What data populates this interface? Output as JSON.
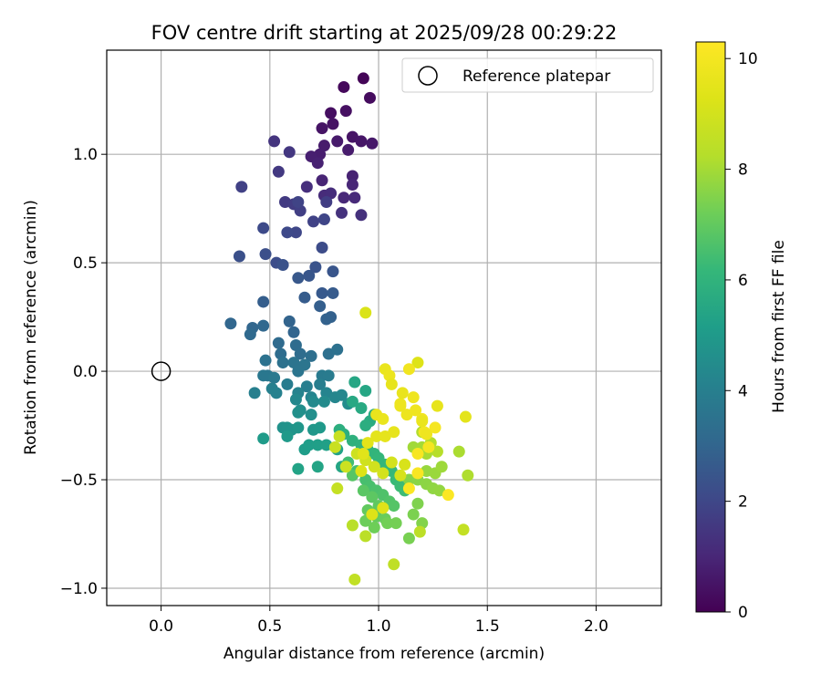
{
  "chart_data": {
    "type": "scatter",
    "title": "FOV centre drift starting at 2025/09/28 00:29:22",
    "xlabel": "Angular distance from reference (arcmin)",
    "ylabel": "Rotation from reference (arcmin)",
    "xlim": [
      -0.25,
      2.3
    ],
    "ylim": [
      -1.08,
      1.48
    ],
    "xticks": [
      0.0,
      0.5,
      1.0,
      1.5,
      2.0
    ],
    "xtick_labels": [
      "0.0",
      "0.5",
      "1.0",
      "1.5",
      "2.0"
    ],
    "yticks": [
      -1.0,
      -0.5,
      0.0,
      0.5,
      1.0
    ],
    "ytick_labels": [
      "−1.0",
      "−0.5",
      "0.0",
      "0.5",
      "1.0"
    ],
    "grid": true,
    "legend": {
      "position": "top-right",
      "entries": [
        "Reference platepar"
      ]
    },
    "reference_point": {
      "x": 0.0,
      "y": 0.0,
      "label": "Reference platepar"
    },
    "colorbar": {
      "label": "Hours from first FF file",
      "range": [
        0,
        10.3
      ],
      "ticks": [
        0,
        2,
        4,
        6,
        8,
        10
      ],
      "tick_labels": [
        "0",
        "2",
        "4",
        "6",
        "8",
        "10"
      ],
      "colormap": "viridis"
    },
    "points": [
      [
        0.93,
        1.35,
        0.1
      ],
      [
        0.84,
        1.31,
        0.2
      ],
      [
        0.96,
        1.26,
        0.3
      ],
      [
        0.78,
        1.19,
        0.35
      ],
      [
        0.85,
        1.2,
        0.4
      ],
      [
        0.79,
        1.14,
        0.45
      ],
      [
        0.74,
        1.12,
        0.5
      ],
      [
        0.88,
        1.08,
        0.5
      ],
      [
        0.92,
        1.06,
        0.55
      ],
      [
        0.97,
        1.05,
        0.6
      ],
      [
        0.81,
        1.06,
        0.65
      ],
      [
        0.75,
        1.04,
        0.7
      ],
      [
        0.86,
        1.02,
        0.7
      ],
      [
        0.73,
        1.0,
        0.75
      ],
      [
        0.69,
        0.99,
        0.8
      ],
      [
        0.72,
        0.96,
        0.85
      ],
      [
        0.88,
        0.9,
        0.9
      ],
      [
        0.74,
        0.88,
        0.95
      ],
      [
        0.88,
        0.86,
        1.0
      ],
      [
        0.84,
        0.8,
        1.05
      ],
      [
        0.89,
        0.8,
        1.1
      ],
      [
        0.75,
        0.81,
        1.15
      ],
      [
        0.78,
        0.82,
        1.2
      ],
      [
        0.67,
        0.85,
        1.25
      ],
      [
        0.92,
        0.72,
        1.3
      ],
      [
        0.83,
        0.73,
        1.35
      ],
      [
        0.52,
        1.06,
        1.4
      ],
      [
        0.59,
        1.01,
        1.5
      ],
      [
        0.54,
        0.92,
        1.55
      ],
      [
        0.57,
        0.78,
        1.6
      ],
      [
        0.61,
        0.77,
        1.65
      ],
      [
        0.76,
        0.78,
        1.7
      ],
      [
        0.64,
        0.74,
        1.75
      ],
      [
        0.37,
        0.85,
        1.8
      ],
      [
        0.7,
        0.69,
        1.85
      ],
      [
        0.63,
        0.78,
        1.9
      ],
      [
        0.75,
        0.7,
        1.95
      ],
      [
        0.62,
        0.64,
        2.0
      ],
      [
        0.58,
        0.64,
        2.05
      ],
      [
        0.47,
        0.66,
        2.1
      ],
      [
        0.74,
        0.57,
        2.15
      ],
      [
        0.53,
        0.5,
        2.2
      ],
      [
        0.48,
        0.54,
        2.25
      ],
      [
        0.36,
        0.53,
        2.3
      ],
      [
        0.56,
        0.49,
        2.35
      ],
      [
        0.71,
        0.48,
        2.4
      ],
      [
        0.79,
        0.46,
        2.45
      ],
      [
        0.68,
        0.44,
        2.5
      ],
      [
        0.63,
        0.43,
        2.55
      ],
      [
        0.74,
        0.36,
        2.6
      ],
      [
        0.79,
        0.36,
        2.65
      ],
      [
        0.66,
        0.34,
        2.7
      ],
      [
        0.47,
        0.32,
        2.75
      ],
      [
        0.73,
        0.3,
        2.8
      ],
      [
        0.78,
        0.25,
        2.85
      ],
      [
        0.76,
        0.24,
        2.9
      ],
      [
        0.59,
        0.23,
        2.95
      ],
      [
        0.61,
        0.18,
        3.0
      ],
      [
        0.32,
        0.22,
        3.05
      ],
      [
        0.42,
        0.2,
        3.05
      ],
      [
        0.47,
        0.21,
        3.1
      ],
      [
        0.41,
        0.17,
        3.15
      ],
      [
        0.54,
        0.13,
        3.2
      ],
      [
        0.62,
        0.12,
        3.25
      ],
      [
        0.64,
        0.08,
        3.3
      ],
      [
        0.55,
        0.08,
        3.3
      ],
      [
        0.69,
        0.07,
        3.35
      ],
      [
        0.77,
        0.08,
        3.4
      ],
      [
        0.81,
        0.1,
        3.45
      ],
      [
        0.48,
        0.05,
        3.5
      ],
      [
        0.56,
        0.04,
        3.5
      ],
      [
        0.61,
        0.04,
        3.55
      ],
      [
        0.66,
        0.03,
        3.6
      ],
      [
        0.63,
        -0.0,
        3.6
      ],
      [
        0.49,
        -0.02,
        3.65
      ],
      [
        0.47,
        -0.02,
        3.7
      ],
      [
        0.52,
        -0.03,
        3.75
      ],
      [
        0.74,
        -0.02,
        3.8
      ],
      [
        0.77,
        -0.02,
        3.85
      ],
      [
        0.58,
        -0.06,
        3.9
      ],
      [
        0.73,
        -0.06,
        3.95
      ],
      [
        0.67,
        -0.07,
        3.95
      ],
      [
        0.43,
        -0.1,
        4.0
      ],
      [
        0.51,
        -0.08,
        4.05
      ],
      [
        0.53,
        -0.1,
        4.1
      ],
      [
        0.63,
        -0.1,
        4.15
      ],
      [
        0.69,
        -0.12,
        4.2
      ],
      [
        0.76,
        -0.1,
        4.2
      ],
      [
        0.8,
        -0.12,
        4.25
      ],
      [
        0.83,
        -0.11,
        4.3
      ],
      [
        0.62,
        -0.13,
        4.35
      ],
      [
        0.7,
        -0.14,
        4.4
      ],
      [
        0.75,
        -0.14,
        4.45
      ],
      [
        0.86,
        -0.15,
        4.5
      ],
      [
        0.64,
        -0.18,
        4.55
      ],
      [
        0.69,
        -0.2,
        4.6
      ],
      [
        0.63,
        -0.19,
        4.65
      ],
      [
        0.56,
        -0.26,
        4.7
      ],
      [
        0.58,
        -0.26,
        4.75
      ],
      [
        0.6,
        -0.27,
        4.8
      ],
      [
        0.63,
        -0.26,
        4.85
      ],
      [
        0.7,
        -0.27,
        4.9
      ],
      [
        0.73,
        -0.26,
        4.95
      ],
      [
        0.58,
        -0.3,
        5.0
      ],
      [
        0.47,
        -0.31,
        5.05
      ],
      [
        0.66,
        -0.36,
        5.1
      ],
      [
        0.68,
        -0.34,
        5.15
      ],
      [
        0.72,
        -0.34,
        5.2
      ],
      [
        0.76,
        -0.34,
        5.25
      ],
      [
        0.81,
        -0.36,
        5.3
      ],
      [
        0.63,
        -0.45,
        5.35
      ],
      [
        0.72,
        -0.44,
        5.4
      ],
      [
        0.83,
        -0.44,
        5.45
      ],
      [
        0.89,
        -0.05,
        5.5
      ],
      [
        0.94,
        -0.09,
        5.5
      ],
      [
        0.88,
        -0.14,
        5.55
      ],
      [
        0.92,
        -0.17,
        5.6
      ],
      [
        0.96,
        -0.23,
        5.65
      ],
      [
        0.98,
        -0.2,
        5.7
      ],
      [
        0.94,
        -0.25,
        5.75
      ],
      [
        0.82,
        -0.27,
        5.8
      ],
      [
        0.84,
        -0.29,
        5.85
      ],
      [
        0.88,
        -0.32,
        5.9
      ],
      [
        0.92,
        -0.34,
        5.95
      ],
      [
        0.95,
        -0.36,
        6.0
      ],
      [
        0.98,
        -0.38,
        6.05
      ],
      [
        1.0,
        -0.4,
        6.1
      ],
      [
        1.03,
        -0.43,
        6.15
      ],
      [
        1.06,
        -0.46,
        6.2
      ],
      [
        1.08,
        -0.5,
        6.25
      ],
      [
        1.1,
        -0.53,
        6.3
      ],
      [
        1.12,
        -0.55,
        6.35
      ],
      [
        0.86,
        -0.42,
        6.4
      ],
      [
        0.9,
        -0.46,
        6.45
      ],
      [
        0.94,
        -0.5,
        6.5
      ],
      [
        0.96,
        -0.53,
        6.55
      ],
      [
        0.99,
        -0.55,
        6.6
      ],
      [
        1.02,
        -0.57,
        6.65
      ],
      [
        1.05,
        -0.6,
        6.7
      ],
      [
        1.07,
        -0.62,
        6.75
      ],
      [
        0.88,
        -0.48,
        6.8
      ],
      [
        0.93,
        -0.55,
        6.85
      ],
      [
        0.97,
        -0.58,
        6.9
      ],
      [
        1.0,
        -0.62,
        6.95
      ],
      [
        0.95,
        -0.64,
        7.0
      ],
      [
        0.99,
        -0.67,
        7.05
      ],
      [
        1.03,
        -0.68,
        7.1
      ],
      [
        0.94,
        -0.69,
        7.15
      ],
      [
        0.98,
        -0.72,
        7.2
      ],
      [
        1.04,
        -0.7,
        7.25
      ],
      [
        1.08,
        -0.7,
        7.3
      ],
      [
        1.14,
        -0.77,
        7.35
      ],
      [
        1.16,
        -0.66,
        7.4
      ],
      [
        1.18,
        -0.61,
        7.45
      ],
      [
        1.2,
        -0.7,
        7.5
      ],
      [
        1.14,
        -0.5,
        7.55
      ],
      [
        1.18,
        -0.5,
        7.6
      ],
      [
        1.22,
        -0.52,
        7.65
      ],
      [
        1.25,
        -0.54,
        7.7
      ],
      [
        1.28,
        -0.55,
        7.75
      ],
      [
        1.22,
        -0.46,
        7.8
      ],
      [
        1.26,
        -0.47,
        7.85
      ],
      [
        1.29,
        -0.44,
        7.9
      ],
      [
        1.16,
        -0.35,
        7.95
      ],
      [
        1.2,
        -0.35,
        8.0
      ],
      [
        1.22,
        -0.38,
        8.05
      ],
      [
        1.37,
        -0.37,
        8.1
      ],
      [
        1.41,
        -0.48,
        8.15
      ],
      [
        1.2,
        -0.28,
        8.2
      ],
      [
        1.24,
        -0.33,
        8.25
      ],
      [
        1.27,
        -0.37,
        8.3
      ],
      [
        0.88,
        -0.71,
        8.35
      ],
      [
        0.94,
        -0.76,
        8.4
      ],
      [
        1.19,
        -0.74,
        8.45
      ],
      [
        1.07,
        -0.89,
        8.5
      ],
      [
        0.89,
        -0.96,
        8.55
      ],
      [
        1.39,
        -0.73,
        8.6
      ],
      [
        0.81,
        -0.54,
        8.65
      ],
      [
        0.82,
        -0.3,
        8.7
      ],
      [
        0.8,
        -0.35,
        8.75
      ],
      [
        0.85,
        -0.44,
        8.8
      ],
      [
        0.9,
        -0.38,
        8.85
      ],
      [
        0.94,
        -0.41,
        8.9
      ],
      [
        0.98,
        -0.44,
        8.95
      ],
      [
        1.02,
        -0.47,
        9.0
      ],
      [
        1.06,
        -0.42,
        9.05
      ],
      [
        1.1,
        -0.48,
        9.1
      ],
      [
        1.12,
        -0.43,
        9.15
      ],
      [
        0.94,
        0.27,
        9.2
      ],
      [
        0.92,
        -0.46,
        9.25
      ],
      [
        0.97,
        -0.66,
        9.3
      ],
      [
        1.02,
        -0.63,
        9.35
      ],
      [
        0.93,
        -0.38,
        9.4
      ],
      [
        0.95,
        -0.33,
        9.45
      ],
      [
        0.99,
        -0.3,
        9.5
      ],
      [
        1.03,
        -0.3,
        9.55
      ],
      [
        1.07,
        -0.28,
        9.6
      ],
      [
        0.99,
        -0.2,
        9.65
      ],
      [
        1.02,
        -0.22,
        9.7
      ],
      [
        1.1,
        -0.16,
        9.75
      ],
      [
        1.13,
        -0.2,
        9.8
      ],
      [
        1.17,
        -0.18,
        9.85
      ],
      [
        1.2,
        -0.22,
        9.9
      ],
      [
        1.21,
        -0.28,
        9.95
      ],
      [
        1.23,
        -0.35,
        10.0
      ],
      [
        1.26,
        -0.26,
        10.05
      ],
      [
        1.18,
        -0.38,
        10.1
      ],
      [
        1.18,
        -0.47,
        10.15
      ],
      [
        1.14,
        -0.54,
        10.2
      ],
      [
        1.32,
        -0.57,
        10.25
      ],
      [
        1.03,
        0.01,
        9.7
      ],
      [
        1.05,
        -0.02,
        9.75
      ],
      [
        1.1,
        -0.15,
        9.8
      ],
      [
        1.16,
        -0.12,
        9.85
      ],
      [
        1.18,
        0.04,
        9.3
      ],
      [
        1.14,
        0.01,
        9.9
      ],
      [
        1.27,
        -0.16,
        9.6
      ],
      [
        1.4,
        -0.21,
        9.5
      ],
      [
        1.22,
        -0.29,
        9.85
      ],
      [
        1.2,
        -0.23,
        9.7
      ],
      [
        1.06,
        -0.06,
        9.6
      ],
      [
        1.11,
        -0.1,
        9.65
      ]
    ]
  }
}
